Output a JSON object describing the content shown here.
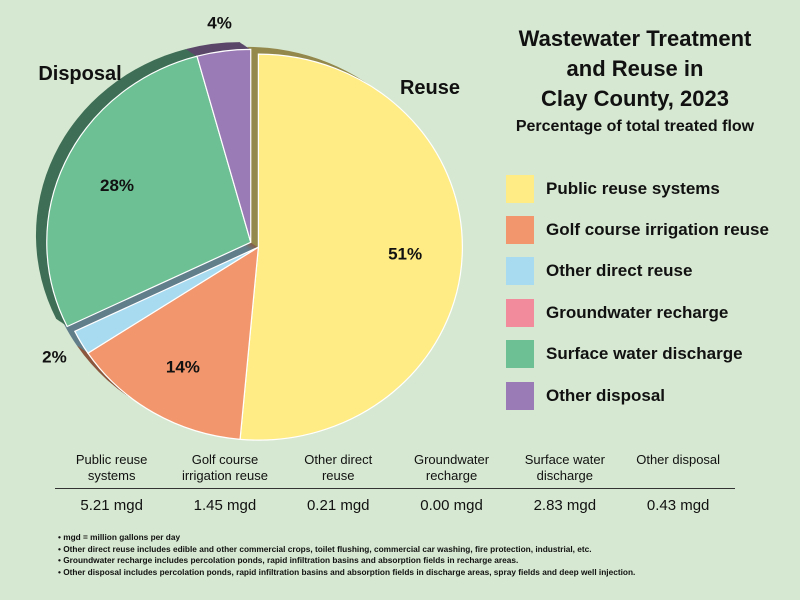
{
  "title": "Wastewater Treatment\nand Reuse in\nClay County, 2023",
  "subtitle": "Percentage of total treated flow",
  "chart_data": {
    "type": "pie",
    "title": "Wastewater Treatment and Reuse in Clay County, 2023",
    "subtitle": "Percentage of total treated flow",
    "groups": [
      {
        "label": "Reuse",
        "slices": [
          "Public reuse systems",
          "Golf course irrigation reuse",
          "Other direct reuse",
          "Groundwater recharge"
        ]
      },
      {
        "label": "Disposal",
        "slices": [
          "Surface water discharge",
          "Other disposal"
        ]
      }
    ],
    "slices": [
      {
        "label": "Public reuse systems",
        "value": 5.21,
        "percent_label": "51%",
        "color": "#ffec85"
      },
      {
        "label": "Golf course irrigation reuse",
        "value": 1.45,
        "percent_label": "14%",
        "color": "#f2976d"
      },
      {
        "label": "Other direct reuse",
        "value": 0.21,
        "percent_label": "2%",
        "color": "#a8daf0"
      },
      {
        "label": "Groundwater recharge",
        "value": 0.0,
        "percent_label": "",
        "color": "#f28c9c"
      },
      {
        "label": "Surface water discharge",
        "value": 2.83,
        "percent_label": "28%",
        "color": "#6dbf94"
      },
      {
        "label": "Other disposal",
        "value": 0.43,
        "percent_label": "4%",
        "color": "#9b7bb5"
      }
    ],
    "legend_position": "right"
  },
  "table": {
    "headers": [
      "Public reuse\nsystems",
      "Golf course\nirrigation reuse",
      "Other direct\nreuse",
      "Groundwater\nrecharge",
      "Surface water\ndischarge",
      "Other disposal"
    ],
    "values": [
      "5.21 mgd",
      "1.45 mgd",
      "0.21 mgd",
      "0.00 mgd",
      "2.83 mgd",
      "0.43 mgd"
    ]
  },
  "notes": [
    "• mgd = million gallons per day",
    "• Other direct reuse includes edible and other commercial crops, toilet flushing, commercial car washing, fire protection, industrial, etc.",
    "• Groundwater recharge includes percolation ponds, rapid infiltration basins and absorption fields in recharge areas.",
    "• Other disposal includes percolation ponds, rapid infiltration basins and absorption fields in discharge areas, spray fields and deep well injection."
  ]
}
